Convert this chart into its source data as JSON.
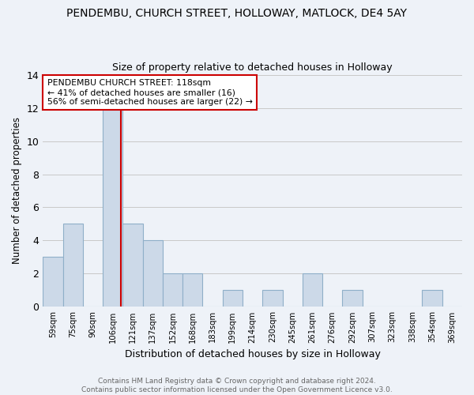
{
  "title": "PENDEMBU, CHURCH STREET, HOLLOWAY, MATLOCK, DE4 5AY",
  "subtitle": "Size of property relative to detached houses in Holloway",
  "xlabel": "Distribution of detached houses by size in Holloway",
  "ylabel": "Number of detached properties",
  "categories": [
    "59sqm",
    "75sqm",
    "90sqm",
    "106sqm",
    "121sqm",
    "137sqm",
    "152sqm",
    "168sqm",
    "183sqm",
    "199sqm",
    "214sqm",
    "230sqm",
    "245sqm",
    "261sqm",
    "276sqm",
    "292sqm",
    "307sqm",
    "323sqm",
    "338sqm",
    "354sqm",
    "369sqm"
  ],
  "values": [
    3,
    5,
    0,
    12,
    5,
    4,
    2,
    2,
    0,
    1,
    0,
    1,
    0,
    2,
    0,
    1,
    0,
    0,
    0,
    1,
    0
  ],
  "bar_color": "#ccd9e8",
  "bar_edge_color": "#8fafc8",
  "ref_line_x": 3.42,
  "annotation_text": "PENDEMBU CHURCH STREET: 118sqm\n← 41% of detached houses are smaller (16)\n56% of semi-detached houses are larger (22) →",
  "footer": "Contains HM Land Registry data © Crown copyright and database right 2024.\nContains public sector information licensed under the Open Government Licence v3.0.",
  "ylim": [
    0,
    14
  ],
  "yticks": [
    0,
    2,
    4,
    6,
    8,
    10,
    12,
    14
  ],
  "bg_color": "#eef2f8",
  "grid_color": "#c8c8c8",
  "title_fontsize": 10,
  "subtitle_fontsize": 9,
  "ref_line_color": "#cc0000",
  "footer_color": "#666666"
}
